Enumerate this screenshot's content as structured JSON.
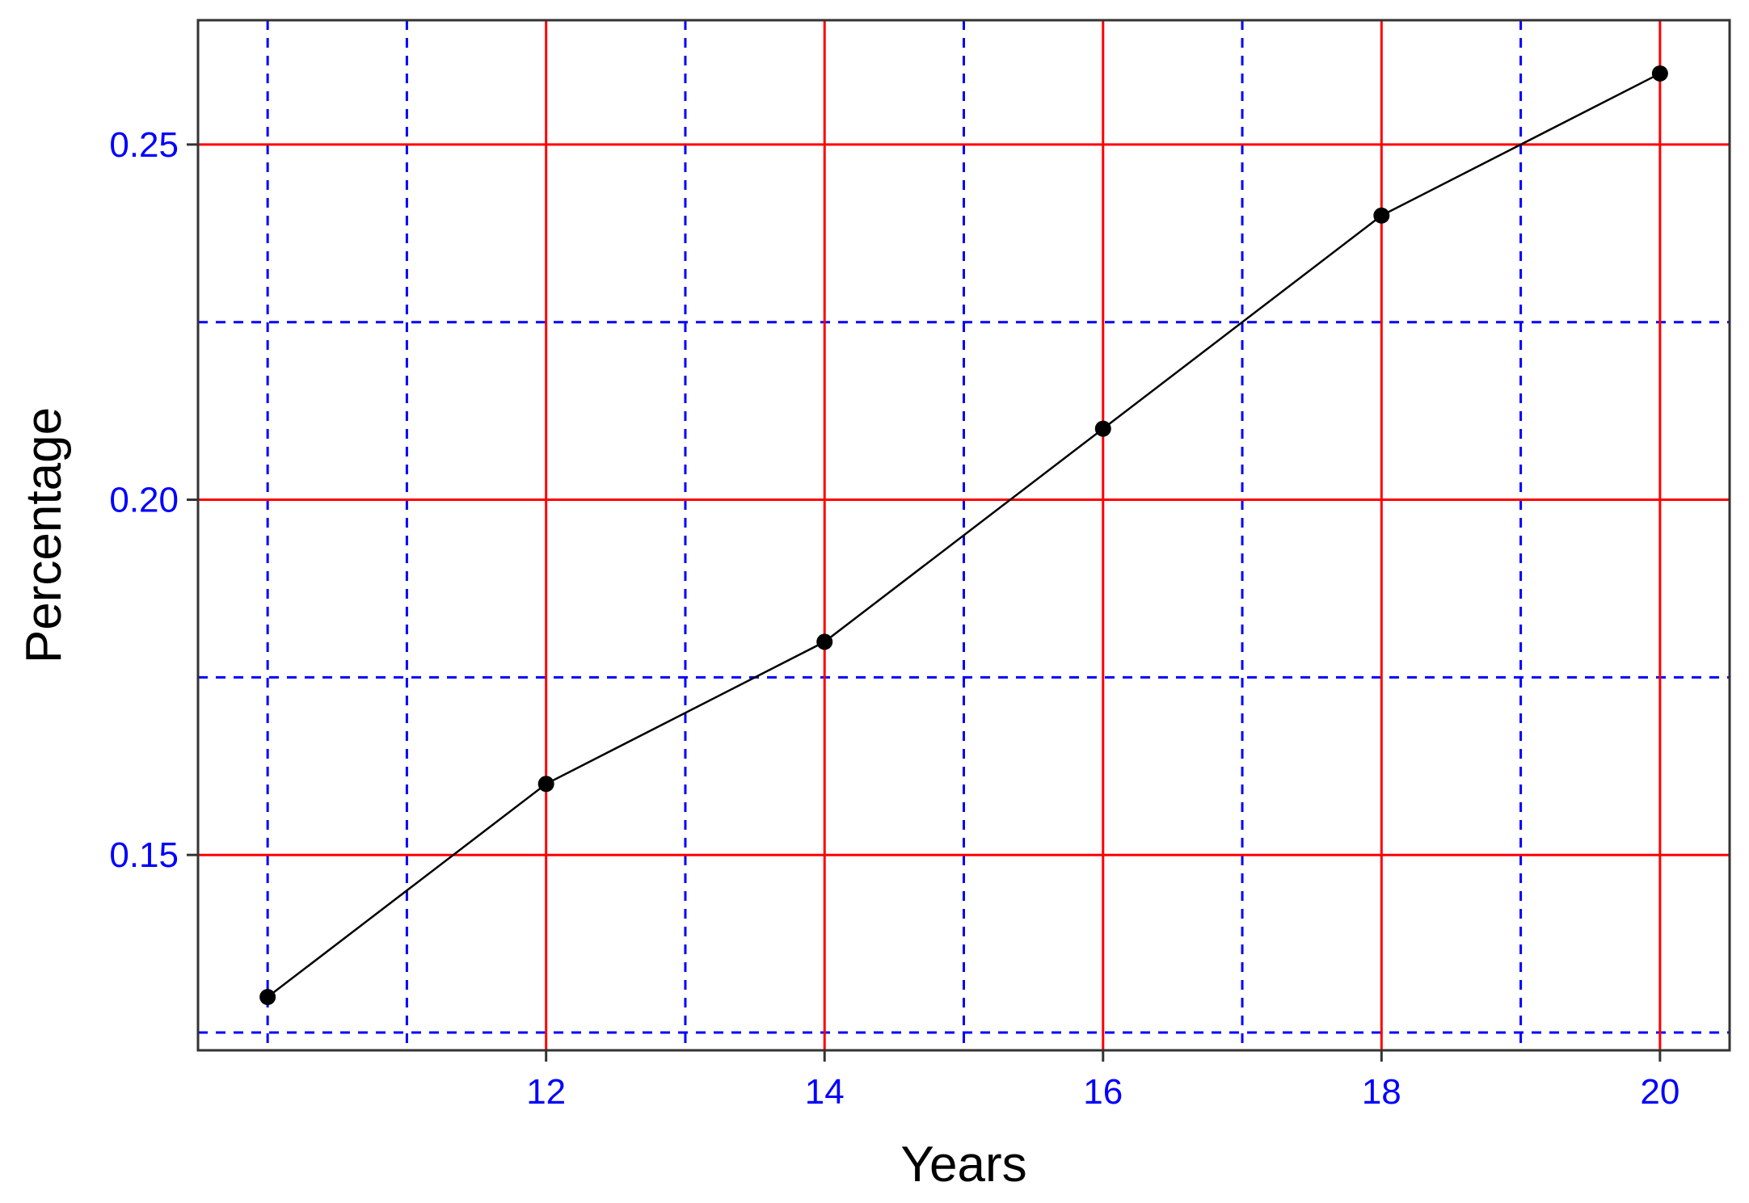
{
  "chart_data": {
    "type": "line",
    "title": "",
    "xlabel": "Years",
    "ylabel": "Percentage",
    "x": [
      10,
      12,
      14,
      16,
      18,
      20
    ],
    "series": [
      {
        "values": [
          0.13,
          0.16,
          0.18,
          0.21,
          0.24,
          0.26
        ],
        "color": "#000000"
      }
    ],
    "xlim": [
      9.5,
      20.5
    ],
    "ylim": [
      0.1225,
      0.2675
    ],
    "x_ticks": [
      12,
      14,
      16,
      18,
      20
    ],
    "x_tick_labels": [
      "12",
      "14",
      "16",
      "18",
      "20"
    ],
    "y_ticks": [
      0.15,
      0.2,
      0.25
    ],
    "y_tick_labels": [
      "0.15",
      "0.20",
      "0.25"
    ],
    "x_minor_grid": [
      10,
      11,
      13,
      15,
      17,
      19
    ],
    "y_minor_grid": [
      0.125,
      0.175,
      0.225
    ],
    "grid": true,
    "major_grid_color": "#ff0000",
    "minor_grid_color": "#0000ff",
    "minor_grid_style": "dashed",
    "tick_label_color": "#0000ff",
    "axis_title_color": "#000000",
    "panel_border_color": "#333333",
    "line_color": "#000000",
    "point_color": "#000000",
    "legend": "none"
  }
}
